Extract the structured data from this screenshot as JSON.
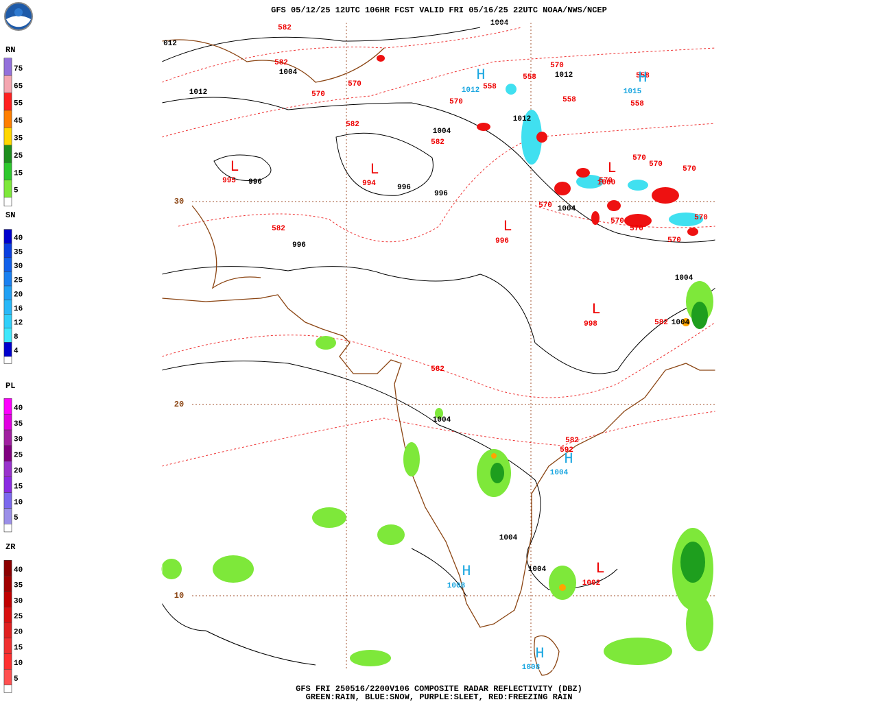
{
  "header": {
    "title": "GFS 05/12/25 12UTC 106HR FCST VALID FRI 05/16/25 22UTC NOAA/NWS/NCEP"
  },
  "legends": [
    {
      "label": "RN",
      "ticks": [
        "75",
        "65",
        "55",
        "45",
        "35",
        "25",
        "15",
        "5"
      ]
    },
    {
      "label": "SN",
      "ticks": [
        "40",
        "35",
        "30",
        "25",
        "20",
        "16",
        "12",
        "8",
        "4"
      ]
    },
    {
      "label": "PL",
      "ticks": [
        "40",
        "35",
        "30",
        "25",
        "20",
        "15",
        "10",
        "5"
      ]
    },
    {
      "label": "ZR",
      "ticks": [
        "40",
        "35",
        "30",
        "25",
        "20",
        "15",
        "10",
        "5"
      ]
    }
  ],
  "map": {
    "latitude_labels": [
      "30",
      "20",
      "10"
    ],
    "labels": [
      "582",
      "582",
      "570",
      "570",
      "582",
      "582",
      "570",
      "558",
      "558",
      "570",
      "558",
      "558",
      "558",
      "570",
      "570",
      "570",
      "570",
      "570",
      "570",
      "570",
      "570",
      "570",
      "582",
      "582",
      "582",
      "582",
      "592",
      "995",
      "994",
      "996",
      "998",
      "1000",
      "1002",
      "012",
      "1004",
      "1012",
      "1012",
      "1004",
      "1012",
      "996",
      "996",
      "996",
      "1004",
      "996",
      "1004",
      "1004",
      "1004",
      "1004",
      "1004",
      "1004",
      "1012",
      "1015",
      "1004",
      "1008",
      "1008",
      "H",
      "H",
      "L",
      "L",
      "L",
      "L",
      "L",
      "H",
      "H",
      "H",
      "L"
    ]
  },
  "footer": {
    "line1": "GFS FRI 250516/2200V106 COMPOSITE RADAR REFLECTIVITY (DBZ)",
    "line2": "GREEN:RAIN, BLUE:SNOW, PURPLE:SLEET, RED:FREEZING RAIN"
  }
}
